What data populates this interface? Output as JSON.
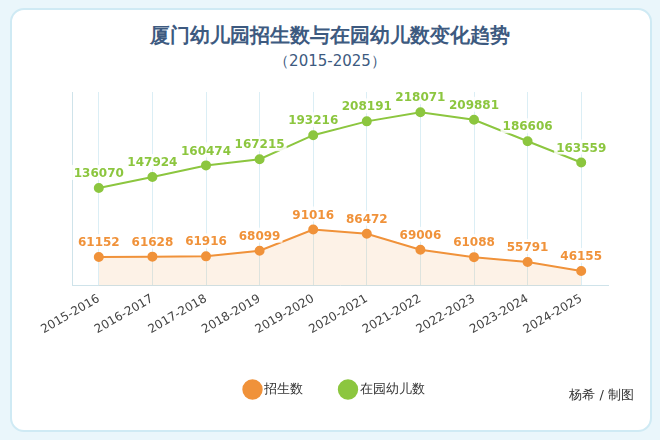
{
  "chart_data": {
    "type": "line",
    "title": "厦门幼儿园招生数与在园幼儿数变化趋势",
    "subtitle": "（2015-2025）",
    "annotations": [
      "杨希 / 制图"
    ],
    "categories": [
      "2015-2016",
      "2016-2017",
      "2017-2018",
      "2018-2019",
      "2019-2020",
      "2020-2021",
      "2021-2022",
      "2022-2023",
      "2023-2024",
      "2024-2025"
    ],
    "series": [
      {
        "name": "招生数",
        "color": "#f0923a",
        "marker": "circle",
        "values": [
          61152,
          61628,
          61916,
          68099,
          91016,
          86472,
          69006,
          61088,
          55791,
          46155
        ]
      },
      {
        "name": "在园幼儿数",
        "color": "#8cc63f",
        "marker": "circle",
        "values": [
          136070,
          147924,
          160474,
          167215,
          193216,
          208191,
          218071,
          209881,
          186606,
          163559
        ]
      }
    ],
    "ylim": [
      30000,
      240000
    ],
    "grid": true,
    "legend": "bottom",
    "data_labels": true,
    "tick_labels": "x"
  }
}
